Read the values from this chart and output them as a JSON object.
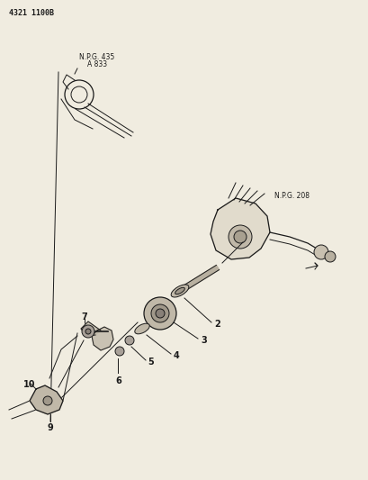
{
  "bg_color": "#f0ece0",
  "title_code": "4321 1100B",
  "line_color": "#1a1a1a",
  "npg_435_text": "N.P.G. 435",
  "a_833_text": "A 833",
  "npg_208_text": "N.P.G. 208",
  "fig_w": 4.1,
  "fig_h": 5.33,
  "dpi": 100
}
